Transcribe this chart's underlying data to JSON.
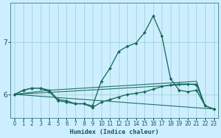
{
  "xlabel": "Humidex (Indice chaleur)",
  "bg_color": "#cceeff",
  "grid_color": "#99cccc",
  "line_color": "#1a6b5a",
  "xlim": [
    -0.5,
    23.5
  ],
  "ylim": [
    5.55,
    7.75
  ],
  "yticks": [
    6,
    7
  ],
  "xticks": [
    0,
    1,
    2,
    3,
    4,
    5,
    6,
    7,
    8,
    9,
    10,
    11,
    12,
    13,
    14,
    15,
    16,
    17,
    18,
    19,
    20,
    21,
    22,
    23
  ],
  "lines": [
    {
      "x": [
        0,
        1,
        2,
        3,
        4,
        5,
        6,
        7,
        8,
        9,
        10,
        11,
        12,
        13,
        14,
        15,
        16,
        17,
        18,
        19,
        20,
        21,
        22,
        23
      ],
      "y": [
        6.0,
        6.08,
        6.12,
        6.12,
        6.08,
        5.9,
        5.88,
        5.82,
        5.82,
        5.78,
        6.25,
        6.5,
        6.82,
        6.92,
        6.98,
        7.18,
        7.5,
        7.12,
        6.3,
        6.08,
        6.05,
        6.08,
        5.78,
        5.72
      ],
      "marker": "D",
      "markersize": 2.0,
      "linewidth": 1.0
    },
    {
      "x": [
        0,
        1,
        2,
        3,
        4,
        5,
        6,
        7,
        8,
        9,
        10,
        11,
        12,
        13,
        14,
        15,
        16,
        17,
        18,
        19,
        20,
        21,
        22,
        23
      ],
      "y": [
        6.0,
        6.08,
        6.12,
        6.12,
        6.05,
        5.88,
        5.85,
        5.82,
        5.82,
        5.75,
        5.85,
        5.9,
        5.95,
        6.0,
        6.02,
        6.05,
        6.1,
        6.15,
        6.18,
        6.2,
        6.2,
        6.18,
        5.78,
        5.72
      ],
      "marker": "D",
      "markersize": 2.0,
      "linewidth": 1.0
    },
    {
      "x": [
        0,
        23
      ],
      "y": [
        6.0,
        5.72
      ],
      "marker": null,
      "linewidth": 0.8
    },
    {
      "x": [
        0,
        21,
        22,
        23
      ],
      "y": [
        6.0,
        6.2,
        5.78,
        5.72
      ],
      "marker": null,
      "linewidth": 0.8
    },
    {
      "x": [
        0,
        4,
        18,
        21,
        22,
        23
      ],
      "y": [
        6.0,
        6.08,
        6.22,
        6.25,
        5.78,
        5.72
      ],
      "marker": null,
      "linewidth": 0.8
    }
  ]
}
